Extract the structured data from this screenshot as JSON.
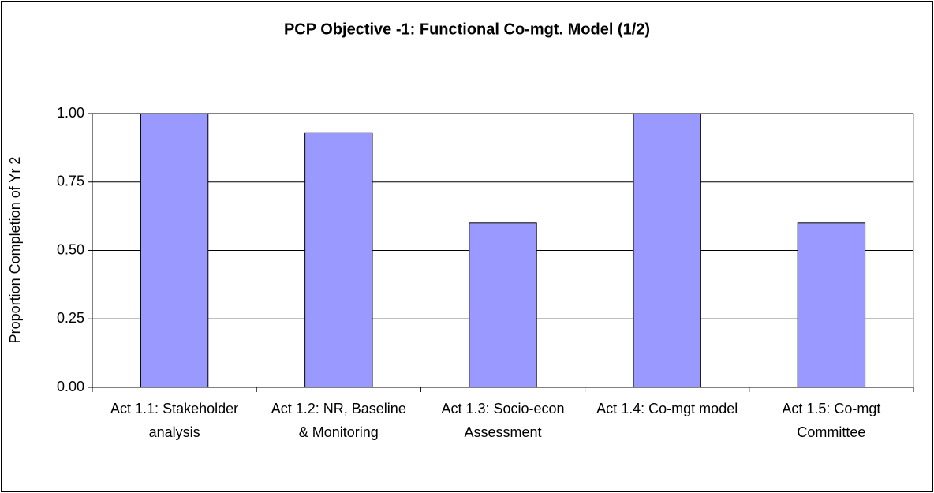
{
  "chart_data": {
    "type": "bar",
    "title": "PCP Objective -1: Functional Co-mgt. Model (1/2)",
    "ylabel": "Proportion Completion of Yr 2",
    "categories": [
      "Act 1.1: Stakeholder analysis",
      "Act 1.2: NR, Baseline & Monitoring",
      "Act 1.3: Socio-econ Assessment",
      "Act 1.4: Co-mgt model",
      "Act 1.5: Co-mgt Committee"
    ],
    "values": [
      1.0,
      0.93,
      0.6,
      1.0,
      0.6
    ],
    "color": "#9999ff",
    "ylim": [
      0,
      1
    ],
    "yticks": [
      {
        "value": 0,
        "label": "0.00"
      },
      0.25,
      {
        "value": 0.5,
        "label": "0.50"
      },
      0.75,
      {
        "value": 1,
        "label": "1.00"
      }
    ],
    "grid": true
  }
}
